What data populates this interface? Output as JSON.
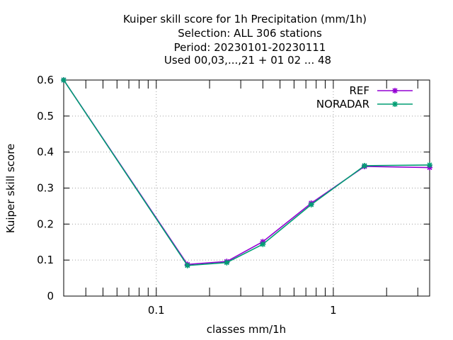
{
  "chart_data": {
    "type": "line",
    "title_lines": [
      "Kuiper skill score  for 1h Precipitation (mm/1h)",
      "Selection: ALL    306 stations",
      "Period: 20230101-20230111",
      "Used  00,03,...,21  + 01 02 ... 48"
    ],
    "xlabel": "classes mm/1h",
    "ylabel": "Kuiper skill score",
    "x_scale": "log",
    "xlim": [
      0.03,
      3.5
    ],
    "ylim": [
      0,
      0.6
    ],
    "x_ticks": [
      0.1,
      1
    ],
    "x_tick_labels": [
      "0.1",
      "1"
    ],
    "y_ticks": [
      0,
      0.1,
      0.2,
      0.3,
      0.4,
      0.5,
      0.6
    ],
    "y_tick_labels": [
      "0",
      "0.1",
      "0.2",
      "0.3",
      "0.4",
      "0.5",
      "0.6"
    ],
    "grid": true,
    "legend_position": "top-right",
    "series": [
      {
        "name": "REF",
        "color": "#9400d3",
        "x": [
          0.03,
          0.15,
          0.25,
          0.4,
          0.75,
          1.5,
          3.5
        ],
        "y": [
          0.6,
          0.088,
          0.096,
          0.151,
          0.258,
          0.36,
          0.357
        ]
      },
      {
        "name": "NORADAR",
        "color": "#009e73",
        "x": [
          0.03,
          0.15,
          0.25,
          0.4,
          0.75,
          1.5,
          3.5
        ],
        "y": [
          0.6,
          0.085,
          0.093,
          0.144,
          0.254,
          0.362,
          0.364
        ]
      }
    ]
  }
}
